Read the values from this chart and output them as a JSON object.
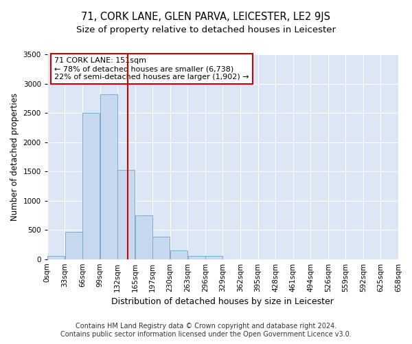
{
  "title": "71, CORK LANE, GLEN PARVA, LEICESTER, LE2 9JS",
  "subtitle": "Size of property relative to detached houses in Leicester",
  "xlabel": "Distribution of detached houses by size in Leicester",
  "ylabel": "Number of detached properties",
  "footnote1": "Contains HM Land Registry data © Crown copyright and database right 2024.",
  "footnote2": "Contains public sector information licensed under the Open Government Licence v3.0.",
  "annotation_line1": "71 CORK LANE: 151sqm",
  "annotation_line2": "← 78% of detached houses are smaller (6,738)",
  "annotation_line3": "22% of semi-detached houses are larger (1,902) →",
  "bin_edges": [
    0,
    33,
    66,
    99,
    132,
    165,
    198,
    231,
    264,
    297,
    330,
    363,
    396,
    429,
    462,
    495,
    528,
    561,
    594,
    627,
    660
  ],
  "bin_labels": [
    "0sqm",
    "33sqm",
    "66sqm",
    "99sqm",
    "132sqm",
    "165sqm",
    "197sqm",
    "230sqm",
    "263sqm",
    "296sqm",
    "329sqm",
    "362sqm",
    "395sqm",
    "428sqm",
    "461sqm",
    "494sqm",
    "526sqm",
    "559sqm",
    "592sqm",
    "625sqm",
    "658sqm"
  ],
  "bar_heights": [
    50,
    470,
    2500,
    2820,
    1520,
    750,
    390,
    150,
    60,
    55,
    0,
    0,
    0,
    0,
    0,
    0,
    0,
    0,
    0,
    0
  ],
  "bar_color": "#c8d8ef",
  "bar_edgecolor": "#7aaad4",
  "vline_color": "#cc0000",
  "vline_x": 151,
  "ylim": [
    0,
    3500
  ],
  "yticks": [
    0,
    500,
    1000,
    1500,
    2000,
    2500,
    3000,
    3500
  ],
  "bg_color": "#dce6f5",
  "annotation_box_color": "#cc0000",
  "title_fontsize": 10.5,
  "subtitle_fontsize": 9.5,
  "ylabel_fontsize": 8.5,
  "xlabel_fontsize": 9,
  "tick_fontsize": 7.5,
  "annotation_fontsize": 8,
  "footnote_fontsize": 7
}
